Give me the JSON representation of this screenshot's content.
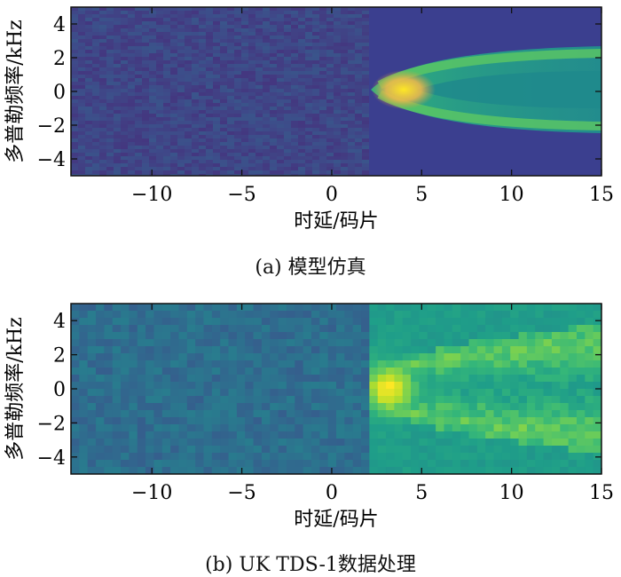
{
  "figure": {
    "panels": [
      {
        "caption": "(a) 模型仿真",
        "chart_data": {
          "type": "heatmap",
          "title": "",
          "xlabel": "时延/码片",
          "ylabel": "多普勒频率/kHz",
          "xlim": [
            -14.5,
            15
          ],
          "ylim": [
            -5,
            5
          ],
          "xticks": [
            -10,
            -5,
            0,
            5,
            10,
            15
          ],
          "yticks": [
            -4,
            -2,
            0,
            2,
            4
          ],
          "xtick_labels": [
            "−10",
            "−5",
            "0",
            "5",
            "10",
            "15"
          ],
          "ytick_labels": [
            "−4",
            "−2",
            "0",
            "2",
            "4"
          ],
          "colormap": "viridis",
          "grid": false,
          "pattern": "horseshoe-shaped delay-Doppler waveform, peak near delay 3.5 chips and 0 kHz, opening toward positive delay; smooth fine-resolution simulation"
        }
      },
      {
        "caption": "(b) UK TDS-1数据处理",
        "chart_data": {
          "type": "heatmap",
          "title": "",
          "xlabel": "时延/码片",
          "ylabel": "多普勒频率/kHz",
          "xlim": [
            -14.5,
            15
          ],
          "ylim": [
            -5,
            5
          ],
          "xticks": [
            -10,
            -5,
            0,
            5,
            10,
            15
          ],
          "yticks": [
            -4,
            -2,
            0,
            2,
            4
          ],
          "xtick_labels": [
            "−10",
            "−5",
            "0",
            "5",
            "10",
            "15"
          ],
          "ytick_labels": [
            "−4",
            "−2",
            "0",
            "2",
            "4"
          ],
          "colormap": "viridis",
          "grid": false,
          "pattern": "horseshoe-shaped delay-Doppler waveform, peak near delay 3 chips and 0 kHz, opening toward positive delay; coarse, noisy measured data"
        }
      }
    ]
  },
  "colors": {
    "background_low": "#3b3f8f",
    "mid": "#2e8a8c",
    "high": "#3dbf6f",
    "peak": "#fde725"
  }
}
